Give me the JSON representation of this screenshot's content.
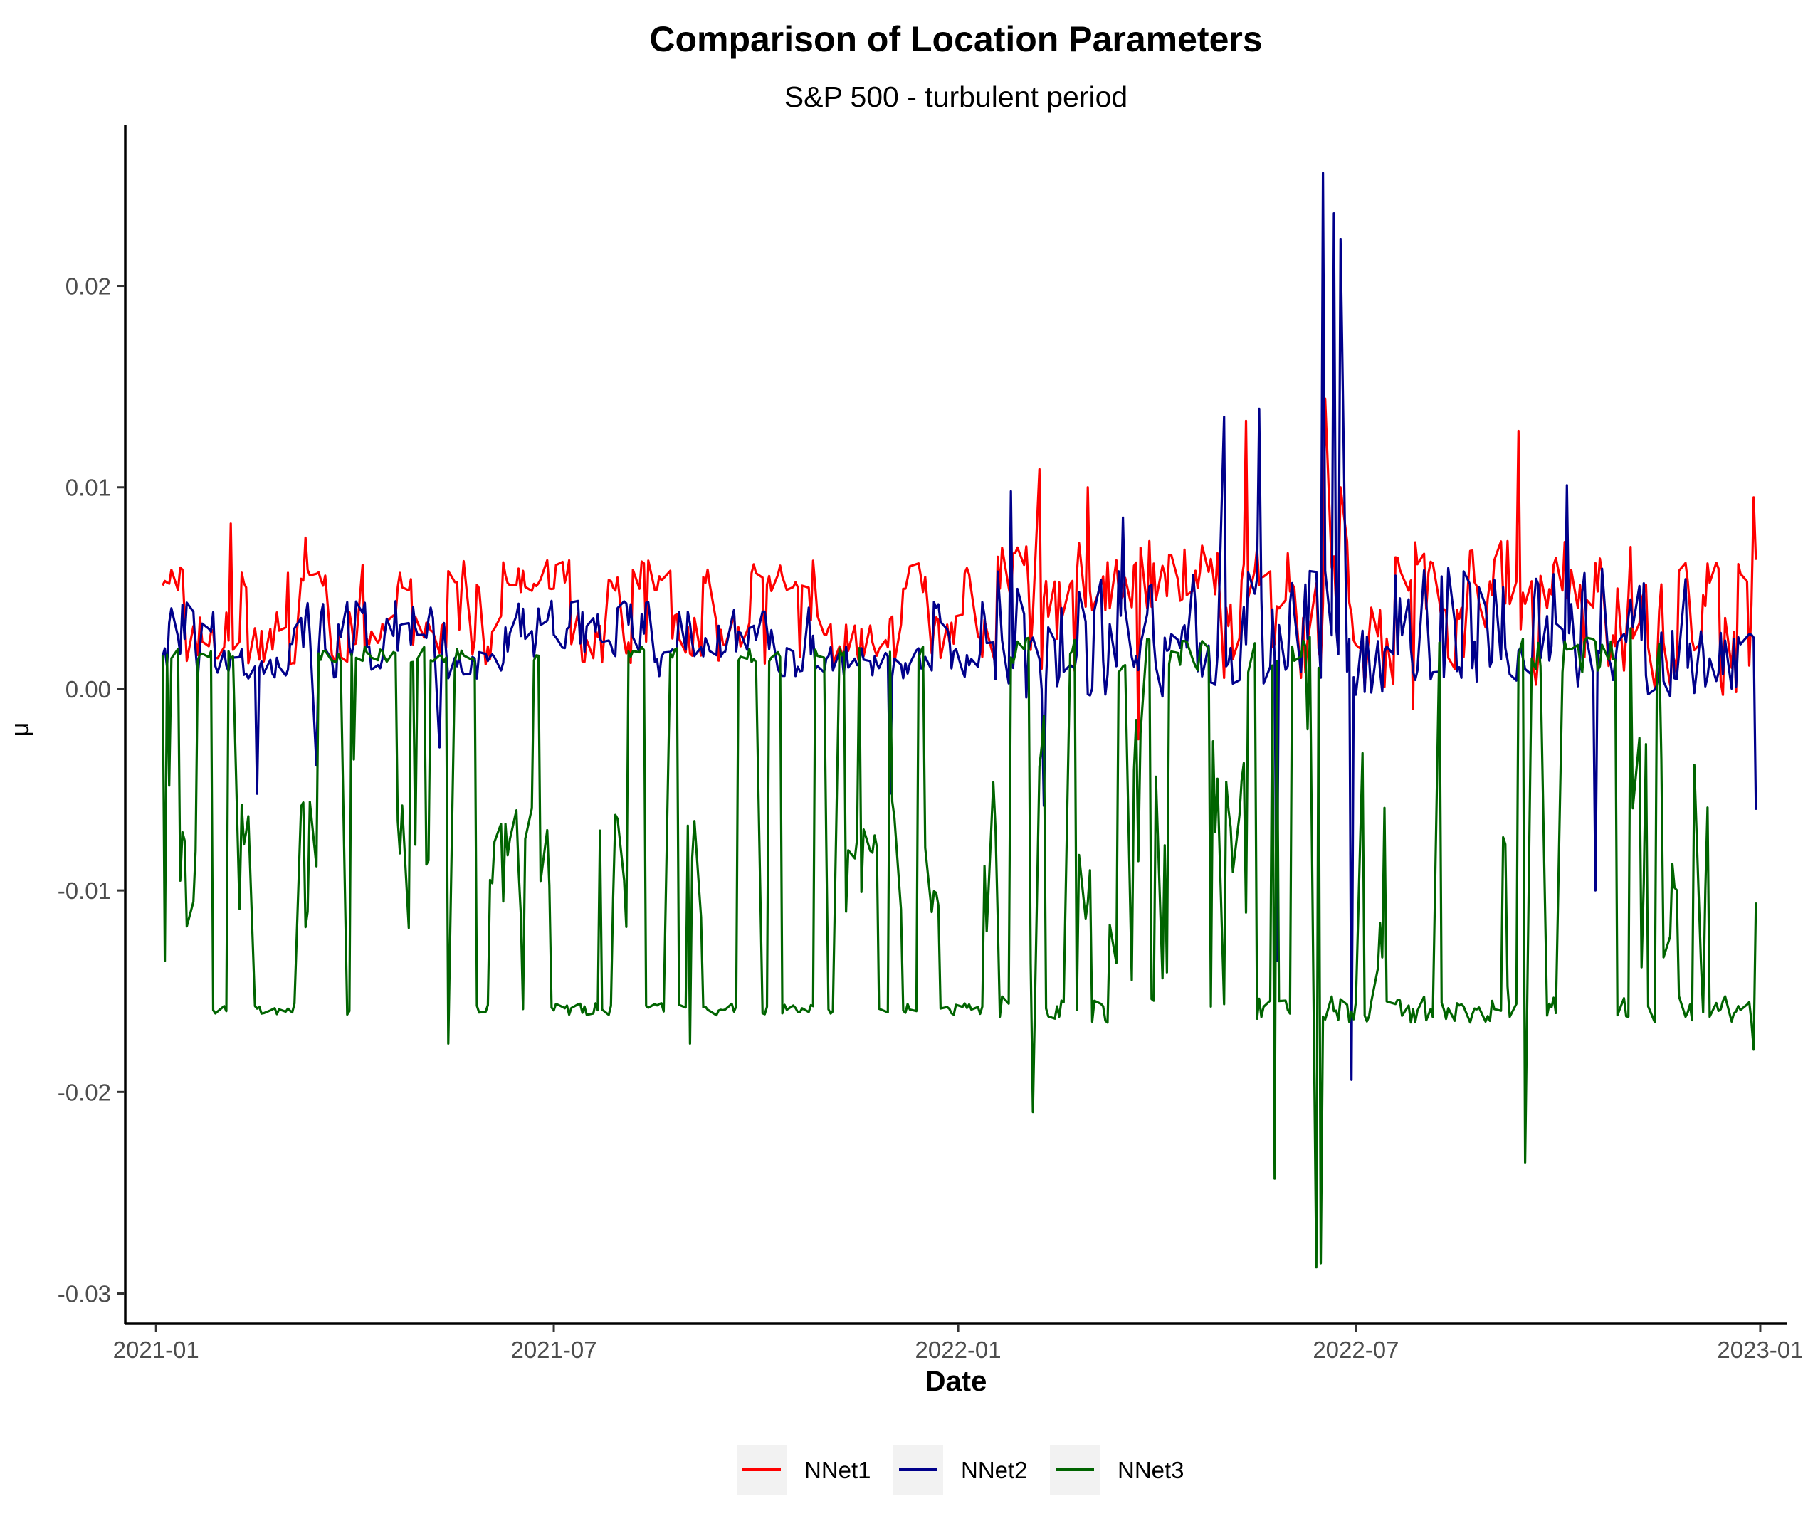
{
  "chart_data": {
    "type": "line",
    "title": "Comparison of Location Parameters",
    "subtitle": "S&P 500 - turbulent period",
    "xlabel": "Date",
    "ylabel": "μ",
    "x_ticks": [
      "2021-01",
      "2021-07",
      "2022-01",
      "2022-07",
      "2023-01"
    ],
    "y_ticks": [
      "-0.03",
      "-0.02",
      "-0.01",
      "0.00",
      "0.01",
      "0.02"
    ],
    "y_tick_values": [
      -0.03,
      -0.02,
      -0.01,
      0.0,
      0.01,
      0.02
    ],
    "xlim": [
      "2020-12-18",
      "2023-01-13"
    ],
    "ylim": [
      -0.0315,
      0.028
    ],
    "grid": false,
    "legend_position": "bottom",
    "x_start": "2021-01-04",
    "x_end": "2022-12-30",
    "series": [
      {
        "name": "NNet1",
        "color": "#FF0000",
        "band_a": {
          "base": 0.0056,
          "spread": 0.0008
        },
        "band_b": {
          "base": 0.0025,
          "spread": 0.0013
        },
        "checkpoints": [
          {
            "date": "2021-02-04",
            "value": 0.0082
          },
          {
            "date": "2021-03-10",
            "value": 0.0075
          },
          {
            "date": "2022-02-07",
            "value": 0.0109
          },
          {
            "date": "2022-03-01",
            "value": 0.01
          },
          {
            "date": "2022-05-12",
            "value": 0.0133
          },
          {
            "date": "2022-06-17",
            "value": 0.0144
          },
          {
            "date": "2022-06-24",
            "value": 0.01
          },
          {
            "date": "2022-09-13",
            "value": 0.0128
          },
          {
            "date": "2022-12-29",
            "value": 0.0095
          },
          {
            "date": "2022-12-30",
            "value": 0.0064
          },
          {
            "date": "2022-03-24",
            "value": -0.0025
          },
          {
            "date": "2022-07-27",
            "value": -0.001
          }
        ]
      },
      {
        "name": "NNet2",
        "color": "#00008B",
        "band_a": {
          "base": 0.003,
          "spread": 0.0014
        },
        "band_b": {
          "base": 0.0013,
          "spread": 0.0008
        },
        "checkpoints": [
          {
            "date": "2021-02-16",
            "value": -0.0052
          },
          {
            "date": "2021-03-15",
            "value": -0.0038
          },
          {
            "date": "2021-05-10",
            "value": -0.0029
          },
          {
            "date": "2021-12-01",
            "value": -0.0052
          },
          {
            "date": "2022-01-25",
            "value": 0.0098
          },
          {
            "date": "2022-02-09",
            "value": -0.0058
          },
          {
            "date": "2022-03-17",
            "value": 0.0085
          },
          {
            "date": "2022-05-02",
            "value": 0.0135
          },
          {
            "date": "2022-05-18",
            "value": 0.0139
          },
          {
            "date": "2022-05-26",
            "value": -0.0135
          },
          {
            "date": "2022-06-16",
            "value": 0.0256
          },
          {
            "date": "2022-06-21",
            "value": 0.0236
          },
          {
            "date": "2022-06-24",
            "value": 0.0223
          },
          {
            "date": "2022-06-29",
            "value": -0.0194
          },
          {
            "date": "2022-10-05",
            "value": 0.0101
          },
          {
            "date": "2022-10-18",
            "value": -0.01
          },
          {
            "date": "2022-12-30",
            "value": -0.006
          }
        ]
      },
      {
        "name": "NNet3",
        "color": "#006400",
        "band_a": {
          "base": 0.0017,
          "spread": 0.0004
        },
        "band_b": {
          "base": -0.0159,
          "spread": 0.0003
        },
        "band_c": {
          "base": -0.009,
          "spread": 0.0035
        },
        "checkpoints": [
          {
            "date": "2021-01-05",
            "value": -0.0135
          },
          {
            "date": "2021-01-07",
            "value": -0.0048
          },
          {
            "date": "2021-04-01",
            "value": -0.0035
          },
          {
            "date": "2021-05-14",
            "value": -0.0176
          },
          {
            "date": "2021-09-01",
            "value": -0.0176
          },
          {
            "date": "2022-02-04",
            "value": -0.021
          },
          {
            "date": "2022-03-25",
            "value": -0.0022
          },
          {
            "date": "2022-05-25",
            "value": -0.0243
          },
          {
            "date": "2022-06-13",
            "value": -0.0287
          },
          {
            "date": "2022-06-15",
            "value": -0.0285
          },
          {
            "date": "2022-06-09",
            "value": -0.002
          },
          {
            "date": "2022-09-16",
            "value": -0.0235
          },
          {
            "date": "2022-11-03",
            "value": 0.003
          },
          {
            "date": "2022-12-29",
            "value": -0.0179
          },
          {
            "date": "2022-12-30",
            "value": -0.0106
          }
        ]
      }
    ]
  }
}
